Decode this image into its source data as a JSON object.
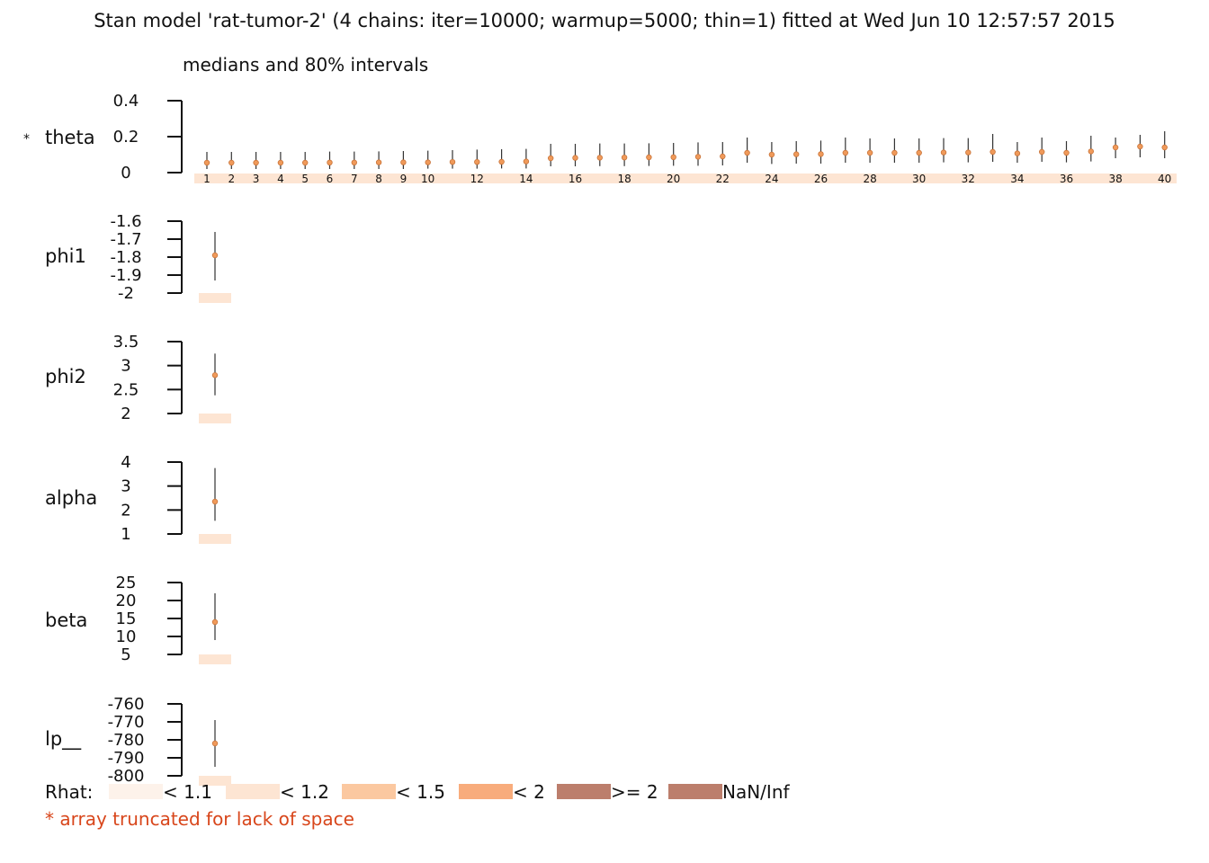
{
  "title": "Stan model 'rat-tumor-2' (4 chains: iter=10000; warmup=5000; thin=1) fitted at Wed Jun 10 12:57:57 2015",
  "subtitle": "medians and 80% intervals",
  "truncated_marker": "*",
  "truncation_note": "*  array truncated for lack of space",
  "colors": {
    "rhat_lt_1_1": "#fdf2ea",
    "rhat_lt_1_2": "#fde5d3",
    "rhat_lt_1_5": "#fbc8a0",
    "rhat_lt_2": "#f8ac7c",
    "rhat_ge_2": "#bc7e6c",
    "rhat_nan": "#bc7e6c",
    "median_point": "#f09a5a",
    "note_text": "#d8461b"
  },
  "legend": {
    "label": "Rhat:",
    "items": [
      {
        "label": "< 1.1",
        "color": "#fdf2ea"
      },
      {
        "label": "< 1.2",
        "color": "#fde5d3"
      },
      {
        "label": "< 1.5",
        "color": "#fbc8a0"
      },
      {
        "label": "< 2",
        "color": "#f8ac7c"
      },
      {
        "label": ">= 2",
        "color": "#bc7e6c"
      },
      {
        "label": "NaN/Inf",
        "color": "#bc7e6c"
      }
    ]
  },
  "chart_data": [
    {
      "type": "scatter",
      "param": "theta",
      "truncated": true,
      "ylim": [
        0,
        0.4
      ],
      "yticks": [
        "0.4",
        "0.2",
        "0"
      ],
      "index_labels": [
        "1",
        "2",
        "3",
        "4",
        "5",
        "6",
        "7",
        "8",
        "9",
        "10",
        "12",
        "14",
        "16",
        "18",
        "20",
        "22",
        "24",
        "26",
        "28",
        "30",
        "32",
        "34",
        "36",
        "38",
        "40"
      ],
      "x": [
        1,
        2,
        3,
        4,
        5,
        6,
        7,
        8,
        9,
        10,
        11,
        12,
        13,
        14,
        15,
        16,
        17,
        18,
        19,
        20,
        21,
        22,
        23,
        24,
        25,
        26,
        27,
        28,
        29,
        30,
        31,
        32,
        33,
        34,
        35,
        36,
        37,
        38,
        39,
        40
      ],
      "median": [
        0.055,
        0.055,
        0.055,
        0.055,
        0.055,
        0.056,
        0.056,
        0.057,
        0.057,
        0.057,
        0.059,
        0.059,
        0.06,
        0.062,
        0.08,
        0.082,
        0.083,
        0.084,
        0.085,
        0.086,
        0.088,
        0.09,
        0.11,
        0.1,
        0.102,
        0.103,
        0.11,
        0.11,
        0.11,
        0.11,
        0.112,
        0.112,
        0.115,
        0.107,
        0.115,
        0.11,
        0.118,
        0.14,
        0.145,
        0.14
      ],
      "lower": [
        0.02,
        0.02,
        0.02,
        0.02,
        0.02,
        0.02,
        0.02,
        0.02,
        0.02,
        0.022,
        0.022,
        0.022,
        0.023,
        0.023,
        0.035,
        0.035,
        0.036,
        0.036,
        0.037,
        0.038,
        0.038,
        0.04,
        0.055,
        0.048,
        0.05,
        0.05,
        0.055,
        0.055,
        0.055,
        0.055,
        0.057,
        0.057,
        0.06,
        0.055,
        0.06,
        0.057,
        0.062,
        0.08,
        0.085,
        0.08
      ],
      "upper": [
        0.115,
        0.115,
        0.115,
        0.115,
        0.115,
        0.117,
        0.117,
        0.118,
        0.12,
        0.122,
        0.125,
        0.128,
        0.13,
        0.132,
        0.16,
        0.16,
        0.162,
        0.162,
        0.163,
        0.165,
        0.168,
        0.17,
        0.195,
        0.17,
        0.175,
        0.178,
        0.195,
        0.19,
        0.19,
        0.19,
        0.192,
        0.192,
        0.215,
        0.17,
        0.195,
        0.175,
        0.205,
        0.195,
        0.21,
        0.23
      ],
      "rhat_color": "#fde5d3"
    },
    {
      "type": "scatter",
      "param": "phi1",
      "truncated": false,
      "ylim": [
        -2,
        -1.6
      ],
      "yticks": [
        "-1.6",
        "-1.7",
        "-1.8",
        "-1.9",
        "-2"
      ],
      "median": -1.79,
      "lower": -1.93,
      "upper": -1.66,
      "rhat_color": "#fde5d3"
    },
    {
      "type": "scatter",
      "param": "phi2",
      "truncated": false,
      "ylim": [
        2,
        3.5
      ],
      "yticks": [
        "3.5",
        "3",
        "2.5",
        "2"
      ],
      "median": 2.8,
      "lower": 2.38,
      "upper": 3.25,
      "rhat_color": "#fde5d3"
    },
    {
      "type": "scatter",
      "param": "alpha",
      "truncated": false,
      "ylim": [
        1,
        4
      ],
      "yticks": [
        "4",
        "3",
        "2",
        "1"
      ],
      "median": 2.35,
      "lower": 1.55,
      "upper": 3.75,
      "rhat_color": "#fde5d3"
    },
    {
      "type": "scatter",
      "param": "beta",
      "truncated": false,
      "ylim": [
        5,
        25
      ],
      "yticks": [
        "25",
        "20",
        "15",
        "10",
        "5"
      ],
      "median": 14,
      "lower": 9,
      "upper": 22,
      "rhat_color": "#fde5d3"
    },
    {
      "type": "scatter",
      "param": "lp__",
      "truncated": false,
      "ylim": [
        -800,
        -760
      ],
      "yticks": [
        "-760",
        "-770",
        "-780",
        "-790",
        "-800"
      ],
      "median": -782,
      "lower": -795,
      "upper": -769,
      "rhat_color": "#fde5d3"
    }
  ]
}
